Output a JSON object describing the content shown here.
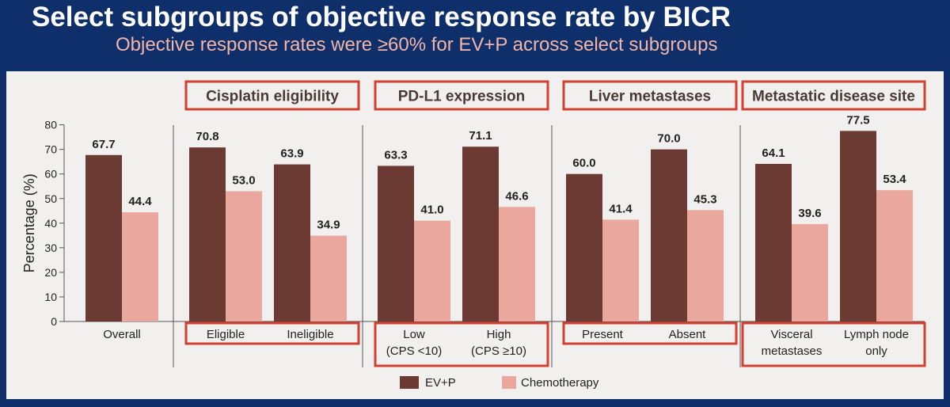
{
  "header": {
    "title": "Select subgroups of objective response rate by BICR",
    "subtitle": "Objective response rates were ≥60% for EV+P across select subgroups"
  },
  "colors": {
    "background": "#0f2f6b",
    "panel": "#f2f0ee",
    "evp": "#6b3a33",
    "chemo": "#eaa79d",
    "highlight_box": "#d2402f",
    "subtitle": "#f2b6a8"
  },
  "chart_data": {
    "type": "bar",
    "ylabel": "Percentage (%)",
    "ylim": [
      0,
      80
    ],
    "yticks": [
      0,
      10,
      20,
      30,
      40,
      50,
      60,
      70,
      80
    ],
    "grid": false,
    "legend_position": "bottom",
    "series": [
      {
        "name": "EV+P",
        "color": "#6b3a33"
      },
      {
        "name": "Chemotherapy",
        "color": "#eaa79d"
      }
    ],
    "groups": [
      {
        "header": "",
        "categories": [
          {
            "label": [
              "Overall"
            ],
            "values": [
              67.7,
              44.4
            ],
            "labels": [
              "67.7",
              "44.4"
            ]
          }
        ]
      },
      {
        "header": "Cisplatin eligibility",
        "categories": [
          {
            "label": [
              "Eligible"
            ],
            "values": [
              70.8,
              53.0
            ],
            "labels": [
              "70.8",
              "53.0"
            ]
          },
          {
            "label": [
              "Ineligible"
            ],
            "values": [
              63.9,
              34.9
            ],
            "labels": [
              "63.9",
              "34.9"
            ]
          }
        ]
      },
      {
        "header": "PD-L1 expression",
        "categories": [
          {
            "label": [
              "Low",
              "(CPS <10)"
            ],
            "values": [
              63.3,
              41.0
            ],
            "labels": [
              "63.3",
              "41.0"
            ]
          },
          {
            "label": [
              "High",
              "(CPS ≥10)"
            ],
            "values": [
              71.1,
              46.6
            ],
            "labels": [
              "71.1",
              "46.6"
            ]
          }
        ]
      },
      {
        "header": "Liver metastases",
        "categories": [
          {
            "label": [
              "Present"
            ],
            "values": [
              60.0,
              41.4
            ],
            "labels": [
              "60.0",
              "41.4"
            ]
          },
          {
            "label": [
              "Absent"
            ],
            "values": [
              70.0,
              45.3
            ],
            "labels": [
              "70.0",
              "45.3"
            ]
          }
        ]
      },
      {
        "header": "Metastatic disease site",
        "categories": [
          {
            "label": [
              "Visceral",
              "metastases"
            ],
            "values": [
              64.1,
              39.6
            ],
            "labels": [
              "64.1",
              "39.6"
            ]
          },
          {
            "label": [
              "Lymph node",
              "only"
            ],
            "values": [
              77.5,
              53.4
            ],
            "labels": [
              "77.5",
              "53.4"
            ]
          }
        ]
      }
    ]
  }
}
